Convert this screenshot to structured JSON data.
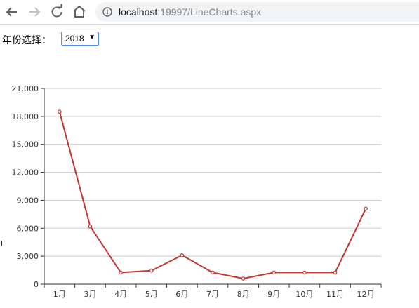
{
  "browser": {
    "url_host": "localhost",
    "url_rest": ":19997/LineCharts.aspx"
  },
  "filter": {
    "label": "年份选择：",
    "selected_year": "2018"
  },
  "chart_data": {
    "type": "line",
    "categories": [
      "1月",
      "3月",
      "4月",
      "5月",
      "6月",
      "7月",
      "8月",
      "9月",
      "10月",
      "11月",
      "12月"
    ],
    "series": [
      {
        "values": [
          18500,
          6200,
          1250,
          1450,
          3100,
          1250,
          600,
          1250,
          1250,
          1250,
          8100
        ]
      }
    ],
    "ylim": [
      0,
      21000
    ],
    "yticks": [
      0,
      3000,
      6000,
      9000,
      12000,
      15000,
      18000,
      21000
    ],
    "ytick_labels": [
      "0",
      "3,000",
      "6,000",
      "9,000",
      "12,000",
      "15,000",
      "18,000",
      "21,000"
    ],
    "grid": true,
    "line_color": "#c23531"
  }
}
